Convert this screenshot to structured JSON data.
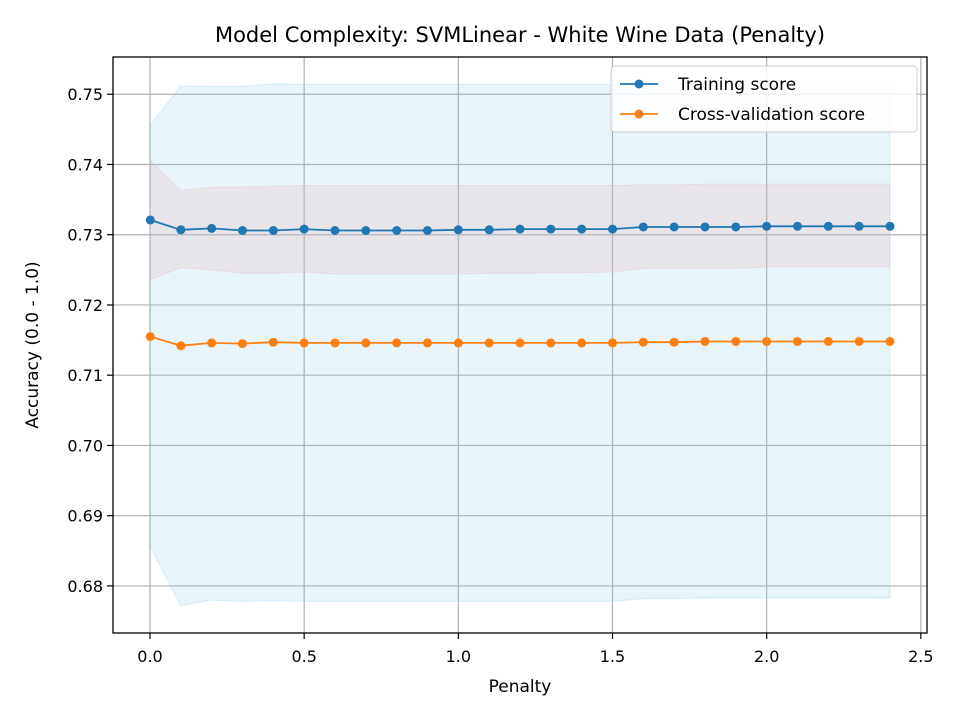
{
  "chart_data": {
    "type": "line",
    "title": "Model Complexity: SVMLinear - White Wine Data (Penalty)",
    "xlabel": "Penalty",
    "ylabel": "Accuracy (0.0 - 1.0)",
    "xlim": [
      -0.12,
      2.52
    ],
    "ylim": [
      0.6733,
      0.7553
    ],
    "xticks": [
      0.0,
      0.5,
      1.0,
      1.5,
      2.0,
      2.5
    ],
    "xtick_labels": [
      "0.0",
      "0.5",
      "1.0",
      "1.5",
      "2.0",
      "2.5"
    ],
    "yticks": [
      0.68,
      0.69,
      0.7,
      0.71,
      0.72,
      0.73,
      0.74,
      0.75
    ],
    "ytick_labels": [
      "0.68",
      "0.69",
      "0.70",
      "0.71",
      "0.72",
      "0.73",
      "0.74",
      "0.75"
    ],
    "grid": true,
    "legend_position": "top-right",
    "x": [
      0.001,
      0.1,
      0.2,
      0.3,
      0.4,
      0.5,
      0.6,
      0.7,
      0.8,
      0.9,
      1.0,
      1.1,
      1.2,
      1.3,
      1.4,
      1.5,
      1.6,
      1.7,
      1.8,
      1.9,
      2.0,
      2.1,
      2.2,
      2.3,
      2.4
    ],
    "series": [
      {
        "name": "Training score",
        "color": "#1f77b4",
        "band_color": "#87ceeb",
        "values": [
          0.7321,
          0.7307,
          0.7309,
          0.7306,
          0.7306,
          0.7308,
          0.7306,
          0.7306,
          0.7306,
          0.7306,
          0.7307,
          0.7307,
          0.7308,
          0.7308,
          0.7308,
          0.7308,
          0.7311,
          0.7311,
          0.7311,
          0.7311,
          0.7312,
          0.7312,
          0.7312,
          0.7312,
          0.7312
        ],
        "band_lower": [
          0.6856,
          0.6772,
          0.678,
          0.6778,
          0.6779,
          0.6778,
          0.6778,
          0.6778,
          0.6778,
          0.6778,
          0.6778,
          0.6778,
          0.6778,
          0.6778,
          0.6778,
          0.6778,
          0.6782,
          0.6782,
          0.6783,
          0.6783,
          0.6783,
          0.6783,
          0.6783,
          0.6783,
          0.6783
        ],
        "band_upper": [
          0.7456,
          0.7512,
          0.7511,
          0.7511,
          0.7515,
          0.7514,
          0.7514,
          0.7514,
          0.7514,
          0.7514,
          0.7514,
          0.7514,
          0.7514,
          0.7514,
          0.7514,
          0.7514,
          0.7514,
          0.7514,
          0.7514,
          0.7514,
          0.7514,
          0.7514,
          0.7514,
          0.7514,
          0.7514
        ]
      },
      {
        "name": "Cross-validation score",
        "color": "#ff7f0e",
        "band_color": "#e8b4b8",
        "values": [
          0.7155,
          0.7142,
          0.7146,
          0.7145,
          0.7147,
          0.7146,
          0.7146,
          0.7146,
          0.7146,
          0.7146,
          0.7146,
          0.7146,
          0.7146,
          0.7146,
          0.7146,
          0.7146,
          0.7147,
          0.7147,
          0.7148,
          0.7148,
          0.7148,
          0.7148,
          0.7148,
          0.7148,
          0.7148
        ],
        "band_lower": [
          0.7236,
          0.7253,
          0.725,
          0.7245,
          0.7245,
          0.7247,
          0.7244,
          0.7244,
          0.7244,
          0.7244,
          0.7244,
          0.7245,
          0.7245,
          0.7246,
          0.7246,
          0.7247,
          0.7252,
          0.7252,
          0.7252,
          0.7252,
          0.7254,
          0.7254,
          0.7254,
          0.7254,
          0.7254
        ],
        "band_upper": [
          0.7406,
          0.7363,
          0.7368,
          0.7368,
          0.7369,
          0.737,
          0.737,
          0.737,
          0.737,
          0.737,
          0.737,
          0.737,
          0.737,
          0.737,
          0.737,
          0.737,
          0.7371,
          0.7371,
          0.7372,
          0.7372,
          0.7372,
          0.7372,
          0.7372,
          0.7372,
          0.7372
        ]
      }
    ]
  }
}
